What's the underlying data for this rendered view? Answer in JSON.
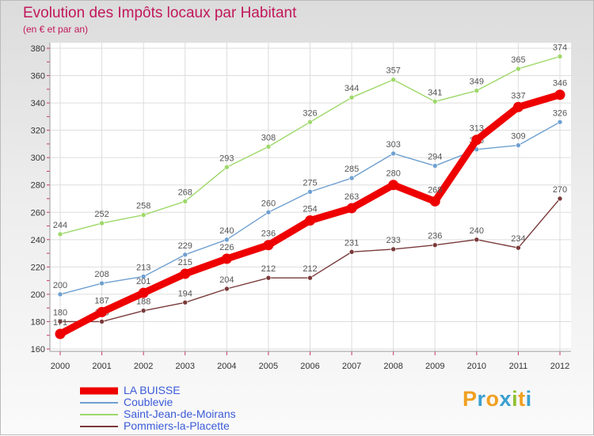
{
  "header": {
    "title": "Evolution des Impôts locaux par Habitant",
    "subtitle": "(en € et par an)"
  },
  "logo": {
    "letters": [
      "P",
      "r",
      "o",
      "x",
      "i",
      "t",
      "i"
    ],
    "colors": [
      "#f0a020",
      "#3aa0d0",
      "#f0a020",
      "#3aa0d0",
      "#90c030",
      "#f0a020",
      "#3aa0d0"
    ]
  },
  "chart_data": {
    "type": "line",
    "x": [
      2000,
      2001,
      2002,
      2003,
      2004,
      2005,
      2006,
      2007,
      2008,
      2009,
      2010,
      2011,
      2012
    ],
    "ylim": [
      160,
      380
    ],
    "yticks": [
      160,
      180,
      200,
      220,
      240,
      260,
      280,
      300,
      320,
      340,
      360,
      380
    ],
    "grid": true,
    "legend_position": "bottom-left",
    "series": [
      {
        "name": "LA BUISSE",
        "color": "#ee0000",
        "emphasis": true,
        "values": [
          171,
          187,
          201,
          215,
          226,
          236,
          254,
          263,
          280,
          268,
          313,
          337,
          346
        ]
      },
      {
        "name": "Coublevie",
        "color": "#6fa0d0",
        "values": [
          200,
          208,
          213,
          229,
          240,
          260,
          275,
          285,
          303,
          294,
          306,
          309,
          326
        ]
      },
      {
        "name": "Saint-Jean-de-Moirans",
        "color": "#9ed86a",
        "values": [
          244,
          252,
          258,
          268,
          293,
          308,
          326,
          344,
          357,
          341,
          349,
          365,
          374
        ]
      },
      {
        "name": "Pommiers-la-Placette",
        "color": "#7a3a3a",
        "values": [
          180,
          180,
          188,
          194,
          204,
          212,
          212,
          231,
          233,
          236,
          240,
          234,
          270
        ]
      }
    ]
  }
}
